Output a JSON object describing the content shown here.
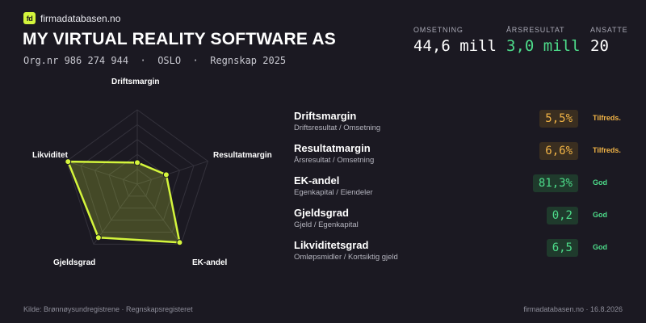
{
  "brand": {
    "logo_text": "fd",
    "name": "firmadatabasen.no"
  },
  "company": {
    "name": "MY VIRTUAL REALITY SOFTWARE AS",
    "orgnr": "Org.nr 986 274 944",
    "city": "OSLO",
    "report": "Regnskap 2025",
    "separator": "·"
  },
  "kpis": {
    "omsetning": {
      "label": "OMSETNING",
      "value": "44,6 mill"
    },
    "arsresultat": {
      "label": "ÅRSRESULTAT",
      "value": "3,0 mill",
      "color": "#4ddc8a"
    },
    "ansatte": {
      "label": "ANSATTE",
      "value": "20"
    }
  },
  "radar": {
    "axes": [
      "Driftsmargin",
      "Resultatmargin",
      "EK-andel",
      "Gjeldsgrad",
      "Likviditet"
    ],
    "values": [
      0.29,
      0.41,
      0.97,
      0.89,
      0.98
    ],
    "fill_color": "#d4f53c"
  },
  "metrics": [
    {
      "name": "Driftsmargin",
      "desc": "Driftsresultat / Omsetning",
      "value": "5,5%",
      "status": "Tilfreds.",
      "level": "warn"
    },
    {
      "name": "Resultatmargin",
      "desc": "Årsresultat / Omsetning",
      "value": "6,6%",
      "status": "Tilfreds.",
      "level": "warn"
    },
    {
      "name": "EK-andel",
      "desc": "Egenkapital / Eiendeler",
      "value": "81,3%",
      "status": "God",
      "level": "good"
    },
    {
      "name": "Gjeldsgrad",
      "desc": "Gjeld / Egenkapital",
      "value": "0,2",
      "status": "God",
      "level": "good"
    },
    {
      "name": "Likviditetsgrad",
      "desc": "Omløpsmidler / Kortsiktig gjeld",
      "value": "6,5",
      "status": "God",
      "level": "good"
    }
  ],
  "footer": {
    "source": "Kilde: Brønnøysundregistrene · Regnskapsregisteret",
    "site_date": "firmadatabasen.no · 16.8.2026"
  }
}
